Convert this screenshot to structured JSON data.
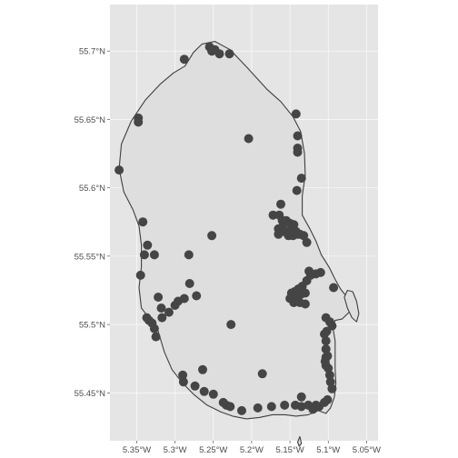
{
  "chart_data": {
    "type": "scatter",
    "title": "",
    "xlabel": "",
    "ylabel": "",
    "xlim": [
      -5.385,
      -5.035
    ],
    "ylim": [
      55.415,
      55.734
    ],
    "x_ticks": [
      -5.35,
      -5.3,
      -5.25,
      -5.2,
      -5.15,
      -5.1,
      -5.05
    ],
    "x_tick_labels": [
      "5.35°W",
      "5.3°W",
      "5.25°W",
      "5.2°W",
      "5.15°W",
      "5.1°W",
      "5.05°W"
    ],
    "y_ticks": [
      55.45,
      55.5,
      55.55,
      55.6,
      55.65,
      55.7
    ],
    "y_tick_labels": [
      "55.45°N",
      "55.5°N",
      "55.55°N",
      "55.6°N",
      "55.65°N",
      "55.7°N"
    ],
    "grid": true,
    "panel_background": "#e5e5e5",
    "land_fill": "#dedede",
    "outline_color": "#3f3f3f",
    "point_color": "#454545",
    "coastline": [
      [
        -5.287,
        55.689
      ],
      [
        -5.276,
        55.699
      ],
      [
        -5.265,
        55.705
      ],
      [
        -5.248,
        55.707
      ],
      [
        -5.228,
        55.701
      ],
      [
        -5.206,
        55.688
      ],
      [
        -5.18,
        55.672
      ],
      [
        -5.162,
        55.663
      ],
      [
        -5.146,
        55.652
      ],
      [
        -5.136,
        55.641
      ],
      [
        -5.131,
        55.625
      ],
      [
        -5.13,
        55.609
      ],
      [
        -5.134,
        55.594
      ],
      [
        -5.134,
        55.58
      ],
      [
        -5.124,
        55.57
      ],
      [
        -5.116,
        55.561
      ],
      [
        -5.109,
        55.551
      ],
      [
        -5.099,
        55.542
      ],
      [
        -5.091,
        55.533
      ],
      [
        -5.084,
        55.526
      ],
      [
        -5.074,
        55.519
      ],
      [
        -5.071,
        55.51
      ],
      [
        -5.082,
        55.504
      ],
      [
        -5.091,
        55.503
      ],
      [
        -5.094,
        55.498
      ],
      [
        -5.091,
        55.488
      ],
      [
        -5.091,
        55.478
      ],
      [
        -5.091,
        55.468
      ],
      [
        -5.09,
        55.457
      ],
      [
        -5.092,
        55.447
      ],
      [
        -5.097,
        55.439
      ],
      [
        -5.103,
        55.435
      ],
      [
        -5.113,
        55.437
      ],
      [
        -5.126,
        55.434
      ],
      [
        -5.142,
        55.433
      ],
      [
        -5.156,
        55.434
      ],
      [
        -5.173,
        55.434
      ],
      [
        -5.19,
        55.432
      ],
      [
        -5.207,
        55.431
      ],
      [
        -5.225,
        55.433
      ],
      [
        -5.24,
        55.436
      ],
      [
        -5.258,
        55.441
      ],
      [
        -5.276,
        55.449
      ],
      [
        -5.29,
        55.457
      ],
      [
        -5.304,
        55.467
      ],
      [
        -5.314,
        55.48
      ],
      [
        -5.322,
        55.495
      ],
      [
        -5.333,
        55.504
      ],
      [
        -5.344,
        55.512
      ],
      [
        -5.347,
        55.527
      ],
      [
        -5.344,
        55.542
      ],
      [
        -5.344,
        55.558
      ],
      [
        -5.347,
        55.572
      ],
      [
        -5.355,
        55.584
      ],
      [
        -5.367,
        55.597
      ],
      [
        -5.373,
        55.614
      ],
      [
        -5.37,
        55.632
      ],
      [
        -5.357,
        55.649
      ],
      [
        -5.339,
        55.664
      ],
      [
        -5.319,
        55.676
      ],
      [
        -5.302,
        55.684
      ]
    ],
    "pladda_outline": [
      [
        -5.075,
        55.525
      ],
      [
        -5.079,
        55.52
      ],
      [
        -5.075,
        55.512
      ],
      [
        -5.069,
        55.505
      ],
      [
        -5.063,
        55.502
      ],
      [
        -5.06,
        55.508
      ],
      [
        -5.063,
        55.517
      ],
      [
        -5.068,
        55.524
      ]
    ],
    "islet_outline": [
      [
        -5.14,
        55.414
      ],
      [
        -5.137,
        55.418
      ],
      [
        -5.135,
        55.413
      ],
      [
        -5.138,
        55.411
      ]
    ],
    "points": [
      [
        -5.255,
        55.703
      ],
      [
        -5.248,
        55.701
      ],
      [
        -5.252,
        55.7
      ],
      [
        -5.242,
        55.698
      ],
      [
        -5.229,
        55.698
      ],
      [
        -5.288,
        55.694
      ],
      [
        -5.348,
        55.651
      ],
      [
        -5.348,
        55.648
      ],
      [
        -5.373,
        55.613
      ],
      [
        -5.204,
        55.636
      ],
      [
        -5.142,
        55.654
      ],
      [
        -5.14,
        55.638
      ],
      [
        -5.14,
        55.629
      ],
      [
        -5.14,
        55.626
      ],
      [
        -5.135,
        55.607
      ],
      [
        -5.141,
        55.598
      ],
      [
        -5.162,
        55.588
      ],
      [
        -5.172,
        55.58
      ],
      [
        -5.164,
        55.58
      ],
      [
        -5.16,
        55.576
      ],
      [
        -5.155,
        55.576
      ],
      [
        -5.15,
        55.574
      ],
      [
        -5.145,
        55.573
      ],
      [
        -5.16,
        55.571
      ],
      [
        -5.165,
        55.57
      ],
      [
        -5.158,
        55.568
      ],
      [
        -5.152,
        55.568
      ],
      [
        -5.142,
        55.568
      ],
      [
        -5.137,
        55.566
      ],
      [
        -5.132,
        55.565
      ],
      [
        -5.128,
        55.56
      ],
      [
        -5.165,
        55.566
      ],
      [
        -5.152,
        55.565
      ],
      [
        -5.146,
        55.565
      ],
      [
        -5.14,
        55.566
      ],
      [
        -5.252,
        55.565
      ],
      [
        -5.342,
        55.575
      ],
      [
        -5.336,
        55.558
      ],
      [
        -5.34,
        55.551
      ],
      [
        -5.327,
        55.551
      ],
      [
        -5.282,
        55.551
      ],
      [
        -5.345,
        55.536
      ],
      [
        -5.281,
        55.53
      ],
      [
        -5.272,
        55.521
      ],
      [
        -5.288,
        55.519
      ],
      [
        -5.296,
        55.517
      ],
      [
        -5.3,
        55.514
      ],
      [
        -5.318,
        55.512
      ],
      [
        -5.322,
        55.52
      ],
      [
        -5.308,
        55.509
      ],
      [
        -5.317,
        55.505
      ],
      [
        -5.337,
        55.505
      ],
      [
        -5.334,
        55.503
      ],
      [
        -5.33,
        55.501
      ],
      [
        -5.327,
        55.497
      ],
      [
        -5.325,
        55.491
      ],
      [
        -5.227,
        55.5
      ],
      [
        -5.125,
        55.539
      ],
      [
        -5.123,
        55.536
      ],
      [
        -5.116,
        55.537
      ],
      [
        -5.11,
        55.538
      ],
      [
        -5.128,
        55.532
      ],
      [
        -5.134,
        55.528
      ],
      [
        -5.139,
        55.526
      ],
      [
        -5.144,
        55.524
      ],
      [
        -5.148,
        55.523
      ],
      [
        -5.136,
        55.522
      ],
      [
        -5.13,
        55.523
      ],
      [
        -5.14,
        55.521
      ],
      [
        -5.145,
        55.52
      ],
      [
        -5.15,
        55.519
      ],
      [
        -5.145,
        55.516
      ],
      [
        -5.137,
        55.516
      ],
      [
        -5.13,
        55.515
      ],
      [
        -5.093,
        55.527
      ],
      [
        -5.103,
        55.505
      ],
      [
        -5.098,
        55.502
      ],
      [
        -5.095,
        55.499
      ],
      [
        -5.102,
        55.495
      ],
      [
        -5.105,
        55.493
      ],
      [
        -5.103,
        55.488
      ],
      [
        -5.103,
        55.482
      ],
      [
        -5.103,
        55.476
      ],
      [
        -5.103,
        55.47
      ],
      [
        -5.101,
        55.477
      ],
      [
        -5.104,
        55.473
      ],
      [
        -5.1,
        55.468
      ],
      [
        -5.098,
        55.463
      ],
      [
        -5.097,
        55.458
      ],
      [
        -5.095,
        55.453
      ],
      [
        -5.101,
        55.445
      ],
      [
        -5.105,
        55.443
      ],
      [
        -5.112,
        55.44
      ],
      [
        -5.116,
        55.441
      ],
      [
        -5.12,
        55.438
      ],
      [
        -5.126,
        55.441
      ],
      [
        -5.135,
        55.44
      ],
      [
        -5.135,
        55.447
      ],
      [
        -5.143,
        55.441
      ],
      [
        -5.157,
        55.441
      ],
      [
        -5.174,
        55.44
      ],
      [
        -5.192,
        55.439
      ],
      [
        -5.213,
        55.437
      ],
      [
        -5.228,
        55.44
      ],
      [
        -5.233,
        55.441
      ],
      [
        -5.237,
        55.443
      ],
      [
        -5.25,
        55.449
      ],
      [
        -5.262,
        55.451
      ],
      [
        -5.274,
        55.455
      ],
      [
        -5.289,
        55.458
      ],
      [
        -5.264,
        55.467
      ],
      [
        -5.29,
        55.463
      ],
      [
        -5.186,
        55.464
      ]
    ]
  }
}
